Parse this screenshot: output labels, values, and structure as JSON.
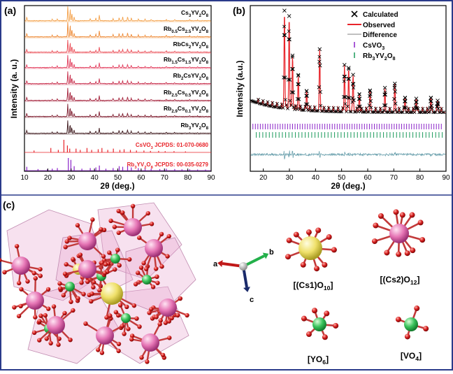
{
  "panel_labels": {
    "a": "(a)",
    "b": "(b)",
    "c": "(c)"
  },
  "chart_data": [
    {
      "type": "line",
      "panel": "(a)",
      "xlabel": "2θ (deg.)",
      "ylabel": "Intensity (a. u.)",
      "xlim": [
        10,
        90
      ],
      "xticks": [
        "10",
        "20",
        "30",
        "40",
        "50",
        "60",
        "70",
        "80",
        "90"
      ],
      "grid": false,
      "series": [
        {
          "name": "Cs3YV2O8",
          "label_html": "Cs<sub>3</sub>YV<sub>2</sub>O<sub>8</sub>",
          "color": "#f4a14a"
        },
        {
          "name": "Rb0.5Cs2.5YV2O8",
          "label_html": "Rb<sub>0.5</sub>Cs<sub>2.5</sub>YV<sub>2</sub>O<sub>8</sub>",
          "color": "#ee8a36"
        },
        {
          "name": "RbCs2YV2O8",
          "label_html": "RbCs<sub>2</sub>YV<sub>2</sub>O<sub>8</sub>",
          "color": "#ea4c55"
        },
        {
          "name": "Rb1.5Cs1.5YV2O8",
          "label_html": "Rb<sub>1.5</sub>Cs<sub>1.5</sub>YV<sub>2</sub>O<sub>8</sub>",
          "color": "#e23c5c"
        },
        {
          "name": "Rb2CsYV2O8",
          "label_html": "Rb<sub>2</sub>CsYV<sub>2</sub>O<sub>8</sub>",
          "color": "#c72c4a"
        },
        {
          "name": "Rb2.5Cs0.5YV2O8",
          "label_html": "Rb<sub>2.5</sub>Cs<sub>0.5</sub>YV<sub>2</sub>O<sub>8</sub>",
          "color": "#a4213a"
        },
        {
          "name": "Rb2.9Cs0.1YV2O8",
          "label_html": "Rb<sub>2.9</sub>Cs<sub>0.1</sub>YV<sub>2</sub>O<sub>8</sub>",
          "color": "#7d1a2c"
        },
        {
          "name": "Rb3YV2O8",
          "label_html": "Rb<sub>3</sub>YV<sub>2</sub>O<sub>8</sub>",
          "color": "#3a1418"
        }
      ],
      "references": [
        {
          "name": "CsVO3 JCPDS: 01-070-0680",
          "label_html": "CsVO<sub>3</sub> JCPDS: 01-070-0680",
          "color": "#e8242a",
          "peaks": [
            [
              14.1,
              0.15
            ],
            [
              21.3,
              0.35
            ],
            [
              24.5,
              0.2
            ],
            [
              26.9,
              1.0
            ],
            [
              28.4,
              0.55
            ],
            [
              29.4,
              0.3
            ],
            [
              32.1,
              0.3
            ],
            [
              33.9,
              0.2
            ],
            [
              36.8,
              0.35
            ],
            [
              38.8,
              0.2
            ],
            [
              41.6,
              0.25
            ],
            [
              43.2,
              0.35
            ],
            [
              45.7,
              0.2
            ],
            [
              48.1,
              0.3
            ],
            [
              50.9,
              0.2
            ],
            [
              52.7,
              0.25
            ],
            [
              55.4,
              0.2
            ],
            [
              58.0,
              0.15
            ],
            [
              61.2,
              0.15
            ],
            [
              64.0,
              0.12
            ],
            [
              67.5,
              0.12
            ],
            [
              70.3,
              0.1
            ],
            [
              74.1,
              0.1
            ],
            [
              79.0,
              0.08
            ]
          ]
        },
        {
          "name": "Rb3YV2O8 JCPDS: 00-035-0279",
          "label_html": "Rb<sub>3</sub>YV<sub>2</sub>O<sub>8</sub> JCPDS: 00-035-0279",
          "color": "#8a22c8",
          "peaks": [
            [
              11.0,
              0.3
            ],
            [
              15.8,
              0.12
            ],
            [
              19.8,
              0.1
            ],
            [
              21.9,
              0.15
            ],
            [
              24.1,
              0.2
            ],
            [
              28.8,
              1.0
            ],
            [
              29.9,
              0.85
            ],
            [
              31.3,
              0.35
            ],
            [
              34.6,
              0.15
            ],
            [
              38.2,
              0.2
            ],
            [
              40.6,
              0.25
            ],
            [
              42.1,
              0.4
            ],
            [
              44.9,
              0.15
            ],
            [
              48.0,
              0.2
            ],
            [
              50.6,
              0.35
            ],
            [
              52.1,
              0.3
            ],
            [
              54.2,
              0.4
            ],
            [
              55.8,
              0.25
            ],
            [
              58.8,
              0.2
            ],
            [
              61.7,
              0.15
            ],
            [
              64.3,
              0.15
            ],
            [
              68.0,
              0.12
            ],
            [
              70.8,
              0.15
            ],
            [
              74.4,
              0.12
            ],
            [
              77.5,
              0.1
            ],
            [
              80.8,
              0.1
            ],
            [
              84.2,
              0.08
            ],
            [
              87.6,
              0.08
            ]
          ]
        }
      ]
    },
    {
      "type": "scatter",
      "panel": "(b)",
      "xlabel": "2θ (deg.)",
      "ylabel": "Intensity (a.u.)",
      "xlim": [
        15,
        90
      ],
      "xticks": [
        "20",
        "30",
        "40",
        "50",
        "60",
        "70",
        "80",
        "90"
      ],
      "grid": false,
      "legend": "top-right",
      "series": [
        {
          "name": "Calculated",
          "label_html": "Calculated",
          "marker": "x",
          "color": "#000000"
        },
        {
          "name": "Observed",
          "label_html": "Observed",
          "marker": "line",
          "color": "#e8242a"
        },
        {
          "name": "Difference",
          "label_html": "Difference",
          "marker": "line",
          "color": "#808080"
        },
        {
          "name": "CsVO3",
          "label_html": "CsVO<sub>3</sub>",
          "marker": "tick",
          "color": "#8a22c8"
        },
        {
          "name": "Rb3YV2O8",
          "label_html": "Rb<sub>3</sub>YV<sub>2</sub>O<sub>8</sub>",
          "marker": "tick",
          "color": "#1a9a5a"
        }
      ],
      "main_peaks": [
        [
          28.1,
          1.0
        ],
        [
          29.9,
          0.95
        ],
        [
          31.2,
          0.55
        ],
        [
          33.4,
          0.35
        ],
        [
          36.6,
          0.2
        ],
        [
          41.6,
          0.62
        ],
        [
          51.1,
          0.48
        ],
        [
          52.7,
          0.45
        ],
        [
          54.4,
          0.38
        ],
        [
          56.8,
          0.18
        ],
        [
          60.9,
          0.22
        ],
        [
          66.6,
          0.2
        ],
        [
          70.4,
          0.28
        ],
        [
          74.3,
          0.15
        ],
        [
          78.6,
          0.14
        ],
        [
          84.2,
          0.15
        ],
        [
          86.8,
          0.12
        ]
      ]
    }
  ],
  "structure": {
    "axes": {
      "a": "a",
      "b": "b",
      "c": "c"
    },
    "polyhedra": [
      {
        "name": "Cs1O10",
        "label_html": "[(Cs1)O<sub>10</sub>]",
        "center_color": "#f3e66a"
      },
      {
        "name": "Cs2O12",
        "label_html": "[(Cs2)O<sub>12</sub>]",
        "center_color": "#e574b4"
      },
      {
        "name": "YO6",
        "label_html": "[YO<sub>6</sub>]",
        "center_color": "#39c25a"
      },
      {
        "name": "VO4",
        "label_html": "[VO<sub>4</sub>]",
        "center_color": "#39c25a"
      }
    ],
    "colors": {
      "oxygen": "#d41c1c",
      "border": "#2a3a8a"
    }
  }
}
